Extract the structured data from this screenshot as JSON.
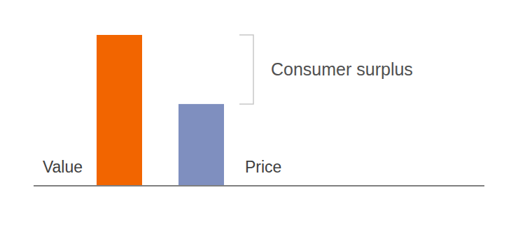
{
  "chart_data": {
    "type": "bar",
    "categories": [
      "Value",
      "Price"
    ],
    "values": [
      100,
      54
    ],
    "colors": [
      "#f26500",
      "#7f8fbf"
    ],
    "ylim": [
      0,
      100
    ],
    "tick_labels": false,
    "grid": false,
    "annotation": "Consumer surplus"
  }
}
